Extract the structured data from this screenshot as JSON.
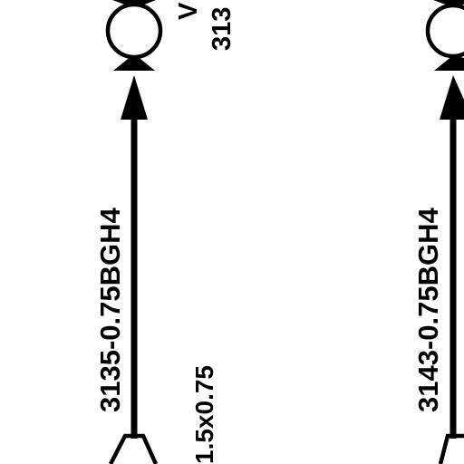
{
  "colors": {
    "ink": "#000000",
    "background": "#ffffff"
  },
  "circuit_left": {
    "wire_code": "3135-0.75BGH4",
    "node_label_top": "V",
    "node_label_bottom": "313",
    "size_label": "1.5x0.75"
  },
  "circuit_right": {
    "wire_code": "3143-0.75BGH4"
  }
}
